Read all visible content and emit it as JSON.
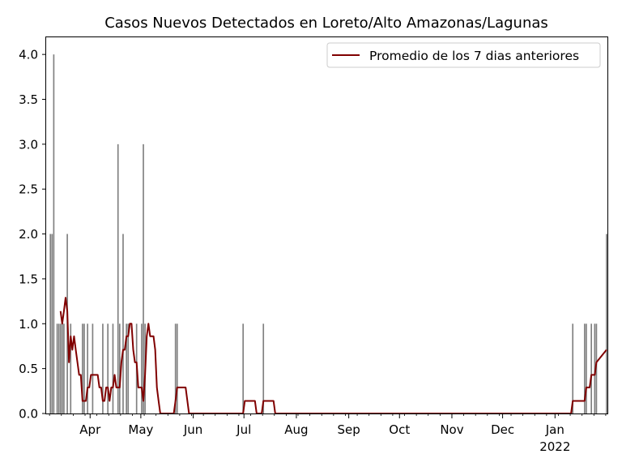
{
  "chart_data": {
    "type": "bar",
    "title": "Casos Nuevos Detectados en Loreto/Alto Amazonas/Lagunas",
    "xlabel": "",
    "ylabel": "",
    "ylim": [
      0,
      4.2
    ],
    "xlim": [
      "2021-03-06",
      "2022-01-31"
    ],
    "y_ticks": [
      "0.0",
      "0.5",
      "1.0",
      "1.5",
      "2.0",
      "2.5",
      "3.0",
      "3.5",
      "4.0"
    ],
    "x_ticks": [
      {
        "date": "2021-04-01",
        "label": "Apr",
        "sub": ""
      },
      {
        "date": "2021-05-01",
        "label": "May",
        "sub": ""
      },
      {
        "date": "2021-06-01",
        "label": "Jun",
        "sub": ""
      },
      {
        "date": "2021-07-01",
        "label": "Jul",
        "sub": ""
      },
      {
        "date": "2021-08-01",
        "label": "Aug",
        "sub": ""
      },
      {
        "date": "2021-09-01",
        "label": "Sep",
        "sub": ""
      },
      {
        "date": "2021-10-01",
        "label": "Oct",
        "sub": ""
      },
      {
        "date": "2021-11-01",
        "label": "Nov",
        "sub": ""
      },
      {
        "date": "2021-12-01",
        "label": "Dec",
        "sub": ""
      },
      {
        "date": "2022-01-01",
        "label": "Jan",
        "sub": "2022"
      }
    ],
    "legend_position": "top-right",
    "colors": {
      "bars": "#808080",
      "line": "#800000"
    },
    "series": [
      {
        "type": "bar",
        "name": "",
        "data": [
          [
            "2021-03-08",
            2
          ],
          [
            "2021-03-09",
            2
          ],
          [
            "2021-03-10",
            4
          ],
          [
            "2021-03-12",
            1
          ],
          [
            "2021-03-13",
            1
          ],
          [
            "2021-03-14",
            1
          ],
          [
            "2021-03-15",
            1
          ],
          [
            "2021-03-16",
            1
          ],
          [
            "2021-03-18",
            2
          ],
          [
            "2021-03-20",
            1
          ],
          [
            "2021-03-27",
            1
          ],
          [
            "2021-03-28",
            1
          ],
          [
            "2021-03-30",
            1
          ],
          [
            "2021-04-02",
            1
          ],
          [
            "2021-04-08",
            1
          ],
          [
            "2021-04-11",
            1
          ],
          [
            "2021-04-14",
            1
          ],
          [
            "2021-04-17",
            3
          ],
          [
            "2021-04-18",
            1
          ],
          [
            "2021-04-20",
            2
          ],
          [
            "2021-04-22",
            1
          ],
          [
            "2021-04-23",
            1
          ],
          [
            "2021-04-28",
            1
          ],
          [
            "2021-05-01",
            1
          ],
          [
            "2021-05-02",
            3
          ],
          [
            "2021-05-03",
            1
          ],
          [
            "2021-05-21",
            1
          ],
          [
            "2021-05-22",
            1
          ],
          [
            "2021-06-30",
            1
          ],
          [
            "2021-07-12",
            1
          ],
          [
            "2022-01-11",
            1
          ],
          [
            "2022-01-18",
            1
          ],
          [
            "2022-01-19",
            1
          ],
          [
            "2022-01-22",
            1
          ],
          [
            "2022-01-24",
            1
          ],
          [
            "2022-01-25",
            1
          ],
          [
            "2022-01-31",
            2
          ]
        ]
      },
      {
        "type": "line",
        "name": "Promedio de los 7 dias anteriores",
        "data": [
          [
            "2021-03-14",
            1.14
          ],
          [
            "2021-03-15",
            1.0
          ],
          [
            "2021-03-16",
            1.14
          ],
          [
            "2021-03-17",
            1.29
          ],
          [
            "2021-03-18",
            1.14
          ],
          [
            "2021-03-19",
            0.57
          ],
          [
            "2021-03-20",
            0.86
          ],
          [
            "2021-03-21",
            0.71
          ],
          [
            "2021-03-22",
            0.86
          ],
          [
            "2021-03-23",
            0.71
          ],
          [
            "2021-03-24",
            0.57
          ],
          [
            "2021-03-25",
            0.43
          ],
          [
            "2021-03-26",
            0.43
          ],
          [
            "2021-03-27",
            0.14
          ],
          [
            "2021-03-28",
            0.14
          ],
          [
            "2021-03-29",
            0.14
          ],
          [
            "2021-03-30",
            0.29
          ],
          [
            "2021-03-31",
            0.29
          ],
          [
            "2021-04-01",
            0.43
          ],
          [
            "2021-04-02",
            0.43
          ],
          [
            "2021-04-04",
            0.43
          ],
          [
            "2021-04-05",
            0.43
          ],
          [
            "2021-04-06",
            0.29
          ],
          [
            "2021-04-07",
            0.29
          ],
          [
            "2021-04-08",
            0.14
          ],
          [
            "2021-04-09",
            0.14
          ],
          [
            "2021-04-10",
            0.29
          ],
          [
            "2021-04-11",
            0.29
          ],
          [
            "2021-04-12",
            0.14
          ],
          [
            "2021-04-13",
            0.29
          ],
          [
            "2021-04-14",
            0.29
          ],
          [
            "2021-04-15",
            0.43
          ],
          [
            "2021-04-16",
            0.29
          ],
          [
            "2021-04-17",
            0.29
          ],
          [
            "2021-04-18",
            0.29
          ],
          [
            "2021-04-19",
            0.57
          ],
          [
            "2021-04-20",
            0.71
          ],
          [
            "2021-04-21",
            0.71
          ],
          [
            "2021-04-22",
            0.86
          ],
          [
            "2021-04-23",
            0.86
          ],
          [
            "2021-04-24",
            1.0
          ],
          [
            "2021-04-25",
            1.0
          ],
          [
            "2021-04-26",
            0.71
          ],
          [
            "2021-04-27",
            0.57
          ],
          [
            "2021-04-28",
            0.57
          ],
          [
            "2021-04-29",
            0.29
          ],
          [
            "2021-04-30",
            0.29
          ],
          [
            "2021-05-01",
            0.29
          ],
          [
            "2021-05-02",
            0.14
          ],
          [
            "2021-05-03",
            0.43
          ],
          [
            "2021-05-04",
            0.86
          ],
          [
            "2021-05-05",
            1.0
          ],
          [
            "2021-05-06",
            0.86
          ],
          [
            "2021-05-07",
            0.86
          ],
          [
            "2021-05-08",
            0.86
          ],
          [
            "2021-05-09",
            0.71
          ],
          [
            "2021-05-10",
            0.29
          ],
          [
            "2021-05-11",
            0.14
          ],
          [
            "2021-05-12",
            0.0
          ],
          [
            "2021-05-20",
            0.0
          ],
          [
            "2021-05-21",
            0.14
          ],
          [
            "2021-05-22",
            0.29
          ],
          [
            "2021-05-27",
            0.29
          ],
          [
            "2021-05-29",
            0.0
          ],
          [
            "2021-06-30",
            0.0
          ],
          [
            "2021-07-01",
            0.14
          ],
          [
            "2021-07-07",
            0.14
          ],
          [
            "2021-07-08",
            0.0
          ],
          [
            "2021-07-11",
            0.0
          ],
          [
            "2021-07-12",
            0.14
          ],
          [
            "2021-07-18",
            0.14
          ],
          [
            "2021-07-19",
            0.0
          ],
          [
            "2022-01-10",
            0.0
          ],
          [
            "2022-01-11",
            0.14
          ],
          [
            "2022-01-18",
            0.14
          ],
          [
            "2022-01-19",
            0.29
          ],
          [
            "2022-01-21",
            0.29
          ],
          [
            "2022-01-22",
            0.43
          ],
          [
            "2022-01-24",
            0.43
          ],
          [
            "2022-01-25",
            0.57
          ],
          [
            "2022-01-31",
            0.71
          ]
        ]
      }
    ]
  }
}
